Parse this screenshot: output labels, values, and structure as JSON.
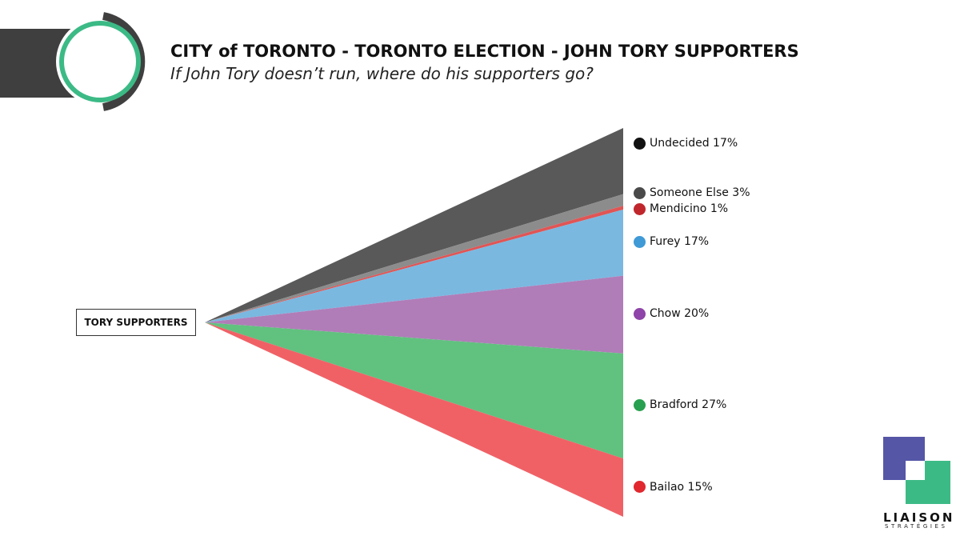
{
  "header": {
    "title": "CITY of TORONTO - TORONTO ELECTION - JOHN TORY SUPPORTERS",
    "subtitle": "If John Tory doesn’t run, where do his supporters go?"
  },
  "chart_data": {
    "type": "funnel",
    "title": "CITY of TORONTO - TORONTO ELECTION - JOHN TORY SUPPORTERS",
    "subtitle": "If John Tory doesn’t run, where do his supporters go?",
    "source": "TORY SUPPORTERS",
    "unit": "%",
    "series": [
      {
        "name": "Undecided",
        "value": 17,
        "label": "Undecided 17%",
        "color": "#595959",
        "dot": "#111111"
      },
      {
        "name": "Someone Else",
        "value": 3,
        "label": "Someone Else 3%",
        "color": "#8c8c8c",
        "dot": "#4a4a4a"
      },
      {
        "name": "Mendicino",
        "value": 1,
        "label": "Mendicino 1%",
        "color": "#e05555",
        "dot": "#c0272d"
      },
      {
        "name": "Furey",
        "value": 17,
        "label": "Furey 17%",
        "color": "#7ab8e0",
        "dot": "#3f9ad6"
      },
      {
        "name": "Chow",
        "value": 20,
        "label": "Chow 20%",
        "color": "#b07db8",
        "dot": "#8e44a8"
      },
      {
        "name": "Bradford",
        "value": 27,
        "label": "Bradford 27%",
        "color": "#61c17f",
        "dot": "#27a04f"
      },
      {
        "name": "Bailao",
        "value": 15,
        "label": "Bailao 15%",
        "color": "#f06166",
        "dot": "#e0282e"
      }
    ]
  },
  "brand": {
    "name": "LIAISON",
    "tagline": "STRATÉGIES",
    "colors": {
      "blue": "#5556a6",
      "green": "#3cba86",
      "accent": "#3cba86",
      "dark": "#3f3f3f"
    }
  }
}
